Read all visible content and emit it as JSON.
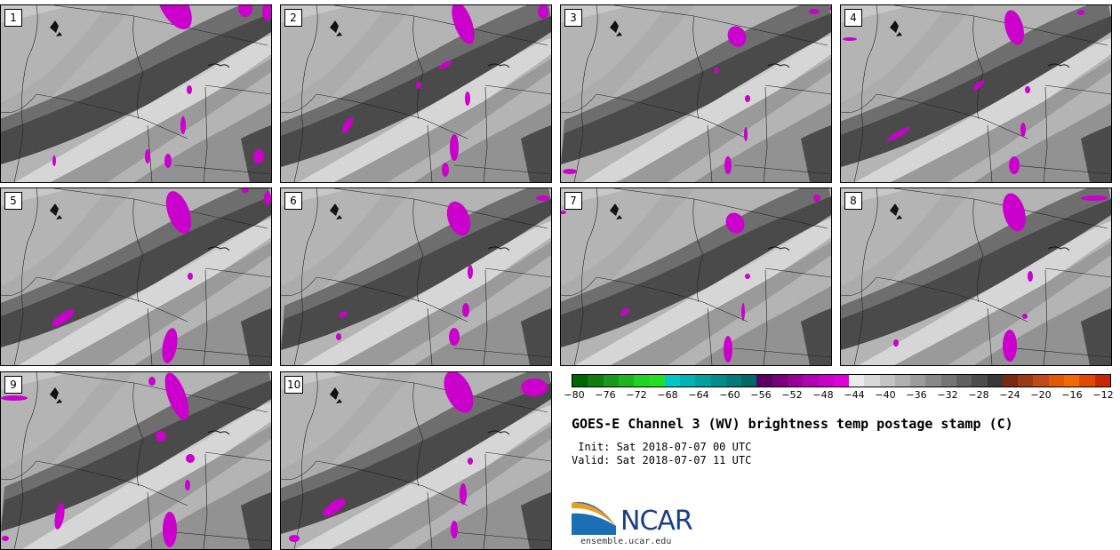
{
  "panels": [
    {
      "label": "1"
    },
    {
      "label": "2"
    },
    {
      "label": "3"
    },
    {
      "label": "4"
    },
    {
      "label": "5"
    },
    {
      "label": "6"
    },
    {
      "label": "7"
    },
    {
      "label": "8"
    },
    {
      "label": "9"
    },
    {
      "label": "10"
    }
  ],
  "colorbar": {
    "colors": [
      "#006400",
      "#117d11",
      "#1a9a1a",
      "#1fb51f",
      "#22d222",
      "#22e022",
      "#00c8c8",
      "#00b4b4",
      "#00a0a0",
      "#008c8c",
      "#007a7a",
      "#006666",
      "#5a0064",
      "#780078",
      "#960096",
      "#b400b4",
      "#c800c8",
      "#dc00dc",
      "#ebebeb",
      "#d8d8d8",
      "#c4c4c4",
      "#b0b0b0",
      "#9c9c9c",
      "#888888",
      "#747474",
      "#606060",
      "#4c4c4c",
      "#383838",
      "#7a2a10",
      "#9c3a14",
      "#be4a18",
      "#e05a00",
      "#f06a00",
      "#e04a00",
      "#c82800"
    ],
    "ticks": [
      "−80",
      "−76",
      "−72",
      "−68",
      "−64",
      "−60",
      "−56",
      "−52",
      "−48",
      "−44",
      "−40",
      "−36",
      "−32",
      "−28",
      "−24",
      "−20",
      "−16",
      "−12"
    ]
  },
  "title": "GOES-E Channel 3 (WV) brightness temp postage stamp (C)",
  "init_line": " Init: Sat 2018-07-07 00 UTC",
  "valid_line": "Valid: Sat 2018-07-07 11 UTC",
  "logo_text": "NCAR",
  "site": "ensemble.ucar.edu",
  "colors": {
    "moist_magenta": "#cc00cc",
    "dry_dark": "#4a4a4a",
    "mid_gray": "#9a9a9a",
    "light_band": "#dcdcdc",
    "logo_blue": "#1b6fb5",
    "logo_orange": "#f29a1e"
  }
}
